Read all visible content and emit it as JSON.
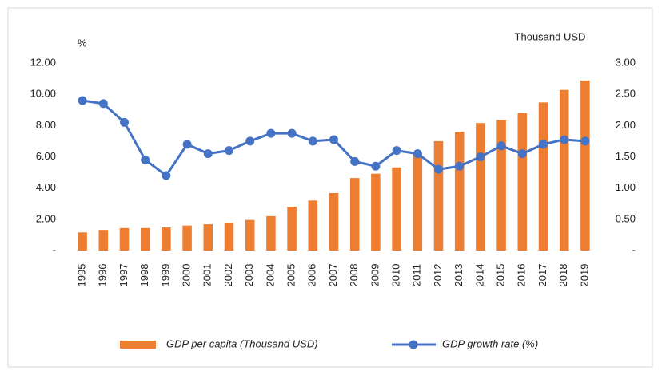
{
  "chart_data": {
    "type": "bar-line",
    "ylabel": "%",
    "y2label": "Thousand USD",
    "categories": [
      "1995",
      "1996",
      "1997",
      "1998",
      "1999",
      "2000",
      "2001",
      "2002",
      "2003",
      "2004",
      "2005",
      "2006",
      "2007",
      "2008",
      "2009",
      "2010",
      "2011",
      "2012",
      "2013",
      "2014",
      "2015",
      "2016",
      "2017",
      "2018",
      "2019"
    ],
    "series": [
      {
        "name": "GDP per capita (Thousand USD)",
        "type": "bar",
        "axis": "y2",
        "color": "#ed7d31",
        "values": [
          0.29,
          0.33,
          0.36,
          0.36,
          0.37,
          0.4,
          0.42,
          0.44,
          0.49,
          0.55,
          0.7,
          0.8,
          0.92,
          1.16,
          1.23,
          1.33,
          1.55,
          1.75,
          1.9,
          2.04,
          2.09,
          2.2,
          2.37,
          2.57,
          2.72
        ]
      },
      {
        "name": "GDP growth rate (%)",
        "type": "line",
        "axis": "y",
        "color": "#4472c4",
        "values": [
          9.6,
          9.4,
          8.2,
          5.8,
          4.8,
          6.8,
          6.2,
          6.4,
          7.0,
          7.5,
          7.5,
          7.0,
          7.1,
          5.7,
          5.4,
          6.4,
          6.2,
          5.2,
          5.4,
          6.0,
          6.7,
          6.2,
          6.8,
          7.1,
          7.0
        ]
      }
    ],
    "ylim": [
      0,
      12
    ],
    "yticks": [
      {
        "value": 0,
        "label": "-"
      },
      {
        "value": 2,
        "label": "2.00"
      },
      {
        "value": 4,
        "label": "4.00"
      },
      {
        "value": 6,
        "label": "6.00"
      },
      {
        "value": 8,
        "label": "8.00"
      },
      {
        "value": 10,
        "label": "10.00"
      },
      {
        "value": 12,
        "label": "12.00"
      }
    ],
    "y2lim": [
      0,
      3
    ],
    "y2ticks": [
      {
        "value": 0,
        "label": "-"
      },
      {
        "value": 0.5,
        "label": "0.50"
      },
      {
        "value": 1,
        "label": "1.00"
      },
      {
        "value": 1.5,
        "label": "1.50"
      },
      {
        "value": 2,
        "label": "2.00"
      },
      {
        "value": 2.5,
        "label": "2.50"
      },
      {
        "value": 3,
        "label": "3.00"
      }
    ],
    "legend": "bottom"
  }
}
